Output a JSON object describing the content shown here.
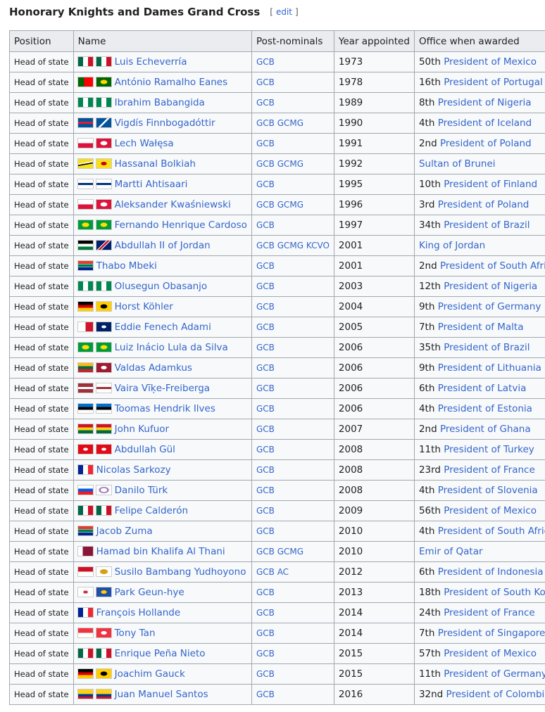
{
  "header": {
    "title": "Honorary Knights and Dames Grand Cross",
    "edit": "edit"
  },
  "table": {
    "columns": [
      "Position",
      "Name",
      "Post-nominals",
      "Year appointed",
      "Office when awarded"
    ],
    "rows": [
      {
        "position": "Head of state",
        "name": "Luis Echeverría",
        "post_nominals": [
          "GCB"
        ],
        "year": 1973,
        "office_ordinal": "50th",
        "office": "President of Mexico"
      },
      {
        "position": "Head of state",
        "name": "António Ramalho Eanes",
        "post_nominals": [
          "GCB"
        ],
        "year": 1978,
        "office_ordinal": "16th",
        "office": "President of Portugal"
      },
      {
        "position": "Head of state",
        "name": "Ibrahim Babangida",
        "post_nominals": [
          "GCB"
        ],
        "year": 1989,
        "office_ordinal": "8th",
        "office": "President of Nigeria"
      },
      {
        "position": "Head of state",
        "name": "Vigdís Finnbogadóttir",
        "post_nominals": [
          "GCB",
          "GCMG"
        ],
        "year": 1990,
        "office_ordinal": "4th",
        "office": "President of Iceland"
      },
      {
        "position": "Head of state",
        "name": "Lech Wałęsa",
        "post_nominals": [
          "GCB"
        ],
        "year": 1991,
        "office_ordinal": "2nd",
        "office": "President of Poland"
      },
      {
        "position": "Head of state",
        "name": "Hassanal Bolkiah",
        "post_nominals": [
          "GCB",
          "GCMG"
        ],
        "year": 1992,
        "office": "Sultan of Brunei"
      },
      {
        "position": "Head of state",
        "name": "Martti Ahtisaari",
        "post_nominals": [
          "GCB"
        ],
        "year": 1995,
        "office_ordinal": "10th",
        "office": "President of Finland"
      },
      {
        "position": "Head of state",
        "name": "Aleksander Kwaśniewski",
        "post_nominals": [
          "GCB",
          "GCMG"
        ],
        "year": 1996,
        "office_ordinal": "3rd",
        "office": "President of Poland"
      },
      {
        "position": "Head of state",
        "name": "Fernando Henrique Cardoso",
        "post_nominals": [
          "GCB"
        ],
        "year": 1997,
        "office_ordinal": "34th",
        "office": "President of Brazil"
      },
      {
        "position": "Head of state",
        "name": "Abdullah II of Jordan",
        "post_nominals": [
          "GCB",
          "GCMG",
          "KCVO"
        ],
        "year": 2001,
        "office": "King of Jordan"
      },
      {
        "position": "Head of state",
        "name": "Thabo Mbeki",
        "post_nominals": [
          "GCB"
        ],
        "year": 2001,
        "office_ordinal": "2nd",
        "office": "President of South Africa"
      },
      {
        "position": "Head of state",
        "name": "Olusegun Obasanjo",
        "post_nominals": [
          "GCB"
        ],
        "year": 2003,
        "office_ordinal": "12th",
        "office": "President of Nigeria"
      },
      {
        "position": "Head of state",
        "name": "Horst Köhler",
        "post_nominals": [
          "GCB"
        ],
        "year": 2004,
        "office_ordinal": "9th",
        "office": "President of Germany"
      },
      {
        "position": "Head of state",
        "name": "Eddie Fenech Adami",
        "post_nominals": [
          "GCB"
        ],
        "year": 2005,
        "office_ordinal": "7th",
        "office": "President of Malta"
      },
      {
        "position": "Head of state",
        "name": "Luiz Inácio Lula da Silva",
        "post_nominals": [
          "GCB"
        ],
        "year": 2006,
        "office_ordinal": "35th",
        "office": "President of Brazil"
      },
      {
        "position": "Head of state",
        "name": "Valdas Adamkus",
        "post_nominals": [
          "GCB"
        ],
        "year": 2006,
        "office_ordinal": "9th",
        "office": "President of Lithuania"
      },
      {
        "position": "Head of state",
        "name": "Vaira Vīķe-Freiberga",
        "post_nominals": [
          "GCB"
        ],
        "year": 2006,
        "office_ordinal": "6th",
        "office": "President of Latvia"
      },
      {
        "position": "Head of state",
        "name": "Toomas Hendrik Ilves",
        "post_nominals": [
          "GCB"
        ],
        "year": 2006,
        "office_ordinal": "4th",
        "office": "President of Estonia"
      },
      {
        "position": "Head of state",
        "name": "John Kufuor",
        "post_nominals": [
          "GCB"
        ],
        "year": 2007,
        "office_ordinal": "2nd",
        "office": "President of Ghana"
      },
      {
        "position": "Head of state",
        "name": "Abdullah Gül",
        "post_nominals": [
          "GCB"
        ],
        "year": 2008,
        "office_ordinal": "11th",
        "office": "President of Turkey"
      },
      {
        "position": "Head of state",
        "name": "Nicolas Sarkozy",
        "post_nominals": [
          "GCB"
        ],
        "year": 2008,
        "office_ordinal": "23rd",
        "office": "President of France"
      },
      {
        "position": "Head of state",
        "name": "Danilo Türk",
        "post_nominals": [
          "GCB"
        ],
        "year": 2008,
        "office_ordinal": "4th",
        "office": "President of Slovenia"
      },
      {
        "position": "Head of state",
        "name": "Felipe Calderón",
        "post_nominals": [
          "GCB"
        ],
        "year": 2009,
        "office_ordinal": "56th",
        "office": "President of Mexico"
      },
      {
        "position": "Head of state",
        "name": "Jacob Zuma",
        "post_nominals": [
          "GCB"
        ],
        "year": 2010,
        "office_ordinal": "4th",
        "office": "President of South Africa"
      },
      {
        "position": "Head of state",
        "name": "Hamad bin Khalifa Al Thani",
        "post_nominals": [
          "GCB",
          "GCMG"
        ],
        "year": 2010,
        "office": "Emir of Qatar"
      },
      {
        "position": "Head of state",
        "name": "Susilo Bambang Yudhoyono",
        "post_nominals": [
          "GCB",
          "AC"
        ],
        "year": 2012,
        "office_ordinal": "6th",
        "office": "President of Indonesia"
      },
      {
        "position": "Head of state",
        "name": "Park Geun-hye",
        "post_nominals": [
          "GCB"
        ],
        "year": 2013,
        "office_ordinal": "18th",
        "office": "President of South Korea"
      },
      {
        "position": "Head of state",
        "name": "François Hollande",
        "post_nominals": [
          "GCB"
        ],
        "year": 2014,
        "office_ordinal": "24th",
        "office": "President of France"
      },
      {
        "position": "Head of state",
        "name": "Tony Tan",
        "post_nominals": [
          "GCB"
        ],
        "year": 2014,
        "office_ordinal": "7th",
        "office": "President of Singapore"
      },
      {
        "position": "Head of state",
        "name": "Enrique Peña Nieto",
        "post_nominals": [
          "GCB"
        ],
        "year": 2015,
        "office_ordinal": "57th",
        "office": "President of Mexico"
      },
      {
        "position": "Head of state",
        "name": "Joachim Gauck",
        "post_nominals": [
          "GCB"
        ],
        "year": 2015,
        "office_ordinal": "11th",
        "office": "President of Germany"
      },
      {
        "position": "Head of state",
        "name": "Juan Manuel Santos",
        "post_nominals": [
          "GCB"
        ],
        "year": 2016,
        "office_ordinal": "32nd",
        "office": "President of Colombia"
      }
    ]
  }
}
